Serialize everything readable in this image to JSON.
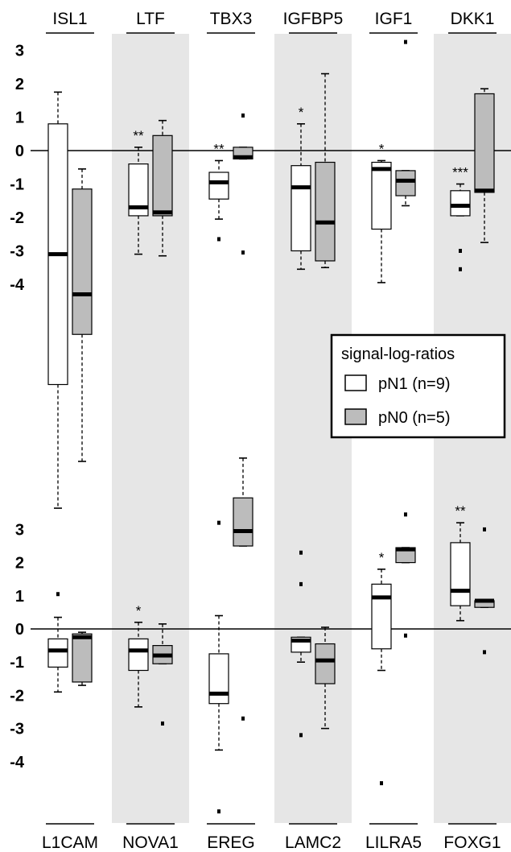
{
  "chart_data": {
    "type": "box",
    "legend": {
      "title": "signal-log-ratios",
      "entries": [
        {
          "label": "pN1 (n=9)",
          "color": "#ffffff"
        },
        {
          "label": "pN0 (n=5)",
          "color": "#bcbcbc"
        }
      ]
    },
    "panels": [
      {
        "label_position": "top",
        "yticks": [
          "3",
          "2",
          "1",
          "0",
          "-1",
          "-2",
          "-3",
          "-4"
        ],
        "ytick_values": [
          3,
          2,
          1,
          0,
          -1,
          -2,
          -3,
          -4
        ],
        "genes": [
          {
            "name": "ISL1",
            "significance": "",
            "pN1": {
              "whisker_low": -10.7,
              "q1": -7,
              "median": -3.1,
              "q3": 0.8,
              "whisker_high": 1.75,
              "outliers": []
            },
            "pN0": {
              "whisker_low": -9.3,
              "q1": -5.5,
              "median": -4.3,
              "q3": -1.15,
              "whisker_high": -0.55,
              "outliers": []
            }
          },
          {
            "name": "LTF",
            "significance": "**",
            "pN1": {
              "whisker_low": -3.1,
              "q1": -1.95,
              "median": -1.7,
              "q3": -0.4,
              "whisker_high": 0.1,
              "outliers": []
            },
            "pN0": {
              "whisker_low": -3.15,
              "q1": -1.95,
              "median": -1.85,
              "q3": 0.45,
              "whisker_high": 0.9,
              "outliers": []
            }
          },
          {
            "name": "TBX3",
            "significance": "**",
            "pN1": {
              "whisker_low": -2.05,
              "q1": -1.45,
              "median": -0.95,
              "q3": -0.65,
              "whisker_high": -0.3,
              "outliers": [
                -2.65
              ]
            },
            "pN0": {
              "whisker_low": -0.25,
              "q1": -0.25,
              "median": -0.2,
              "q3": 0.1,
              "whisker_high": 0.1,
              "outliers": [
                1.05,
                -3.05
              ]
            }
          },
          {
            "name": "IGFBP5",
            "significance": "*",
            "pN1": {
              "whisker_low": -3.55,
              "q1": -3.0,
              "median": -1.1,
              "q3": -0.45,
              "whisker_high": 0.8,
              "outliers": []
            },
            "pN0": {
              "whisker_low": -3.5,
              "q1": -3.3,
              "median": -2.15,
              "q3": -0.35,
              "whisker_high": 2.3,
              "outliers": []
            }
          },
          {
            "name": "IGF1",
            "significance": "*",
            "pN1": {
              "whisker_low": -3.95,
              "q1": -2.35,
              "median": -0.55,
              "q3": -0.35,
              "whisker_high": -0.3,
              "outliers": []
            },
            "pN0": {
              "whisker_low": -1.65,
              "q1": -1.35,
              "median": -0.9,
              "q3": -0.6,
              "whisker_high": -0.6,
              "outliers": [
                3.25
              ]
            }
          },
          {
            "name": "DKK1",
            "significance": "***",
            "pN1": {
              "whisker_low": -1.95,
              "q1": -1.95,
              "median": -1.65,
              "q3": -1.2,
              "whisker_high": -1.0,
              "outliers": [
                -3.0,
                -3.55
              ]
            },
            "pN0": {
              "whisker_low": -2.75,
              "q1": -1.25,
              "median": -1.2,
              "q3": 1.7,
              "whisker_high": 1.85,
              "outliers": []
            }
          }
        ]
      },
      {
        "label_position": "bottom",
        "yticks": [
          "3",
          "2",
          "1",
          "0",
          "-1",
          "-2",
          "-3",
          "-4"
        ],
        "ytick_values": [
          3,
          2,
          1,
          0,
          -1,
          -2,
          -3,
          -4
        ],
        "genes": [
          {
            "name": "L1CAM",
            "significance": "",
            "pN1": {
              "whisker_low": -1.9,
              "q1": -1.15,
              "median": -0.65,
              "q3": -0.3,
              "whisker_high": 0.35,
              "outliers": [
                1.05
              ]
            },
            "pN0": {
              "whisker_low": -1.7,
              "q1": -1.6,
              "median": -0.25,
              "q3": -0.15,
              "whisker_high": -0.1,
              "outliers": []
            }
          },
          {
            "name": "NOVA1",
            "significance": "*",
            "pN1": {
              "whisker_low": -2.35,
              "q1": -1.25,
              "median": -0.65,
              "q3": -0.3,
              "whisker_high": 0.2,
              "outliers": []
            },
            "pN0": {
              "whisker_low": -1.05,
              "q1": -1.05,
              "median": -0.8,
              "q3": -0.5,
              "whisker_high": 0.15,
              "outliers": [
                -2.85
              ]
            }
          },
          {
            "name": "EREG",
            "significance": "",
            "pN1": {
              "whisker_low": -3.65,
              "q1": -2.25,
              "median": -1.95,
              "q3": -0.75,
              "whisker_high": 0.4,
              "outliers": [
                3.2,
                -5.5
              ]
            },
            "pN0": {
              "whisker_low": 2.5,
              "q1": 2.5,
              "median": 2.95,
              "q3": 3.95,
              "whisker_high": 5.15,
              "outliers": [
                -2.7
              ]
            }
          },
          {
            "name": "LAMC2",
            "significance": "",
            "pN1": {
              "whisker_low": -1.0,
              "q1": -0.7,
              "median": -0.35,
              "q3": -0.25,
              "whisker_high": -0.25,
              "outliers": [
                2.3,
                1.35,
                -3.2
              ]
            },
            "pN0": {
              "whisker_low": -3.0,
              "q1": -1.65,
              "median": -0.95,
              "q3": -0.45,
              "whisker_high": 0.05,
              "outliers": []
            }
          },
          {
            "name": "LILRA5",
            "significance": "*",
            "pN1": {
              "whisker_low": -1.25,
              "q1": -0.6,
              "median": 0.95,
              "q3": 1.35,
              "whisker_high": 1.8,
              "outliers": [
                -4.65
              ]
            },
            "pN0": {
              "whisker_low": 2.0,
              "q1": 2.0,
              "median": 2.4,
              "q3": 2.45,
              "whisker_high": 2.45,
              "outliers": [
                3.45,
                -0.2
              ]
            }
          },
          {
            "name": "FOXG1",
            "significance": "**",
            "pN1": {
              "whisker_low": 0.25,
              "q1": 0.7,
              "median": 1.15,
              "q3": 2.6,
              "whisker_high": 3.2,
              "outliers": []
            },
            "pN0": {
              "whisker_low": 0.65,
              "q1": 0.65,
              "median": 0.85,
              "q3": 0.85,
              "whisker_high": 0.85,
              "outliers": [
                3.0,
                -0.7
              ]
            }
          }
        ]
      }
    ]
  }
}
